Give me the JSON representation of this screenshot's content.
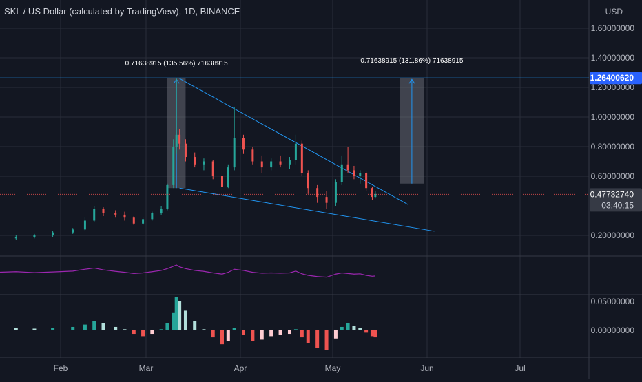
{
  "header": {
    "title": "SKL / US Dollar (calculated by TradingView), 1D, BINANCE",
    "currency": "USD"
  },
  "colors": {
    "background": "#131722",
    "grid": "#2a2e39",
    "up": "#26a69a",
    "down": "#ef5350",
    "line_blue": "#2196f3",
    "rsi": "#9c27b0",
    "hist_light_up": "#b2dfdb",
    "hist_light_down": "#ffcdd2",
    "label_bg": "#2962ff",
    "price_bg": "#363a45"
  },
  "price_scale": {
    "ticks": [
      "1.60000000",
      "1.40000000",
      "1.20000000",
      "1.00000000",
      "0.80000000",
      "0.60000000",
      "0.20000000"
    ],
    "tick_values": [
      1.6,
      1.4,
      1.2,
      1.0,
      0.8,
      0.6,
      0.2
    ],
    "level_label": "1.26400620",
    "current_price": "0.47732740",
    "countdown": "03:40:15"
  },
  "osc_scale": {
    "ticks": [
      "0.05000000",
      "0.00000000"
    ],
    "tick_values": [
      0.05,
      0.0
    ]
  },
  "time_axis": [
    "Feb",
    "Mar",
    "Apr",
    "May",
    "Jun",
    "Jul"
  ],
  "measure_labels": [
    "0.71638915 (135.56%) 71638915",
    "0.71638915 (131.86%) 71638915"
  ],
  "chart_data": {
    "type": "candlestick",
    "title": "SKL / US Dollar (calculated by TradingView), 1D, BINANCE",
    "ylim": [
      0.1,
      1.7
    ],
    "price_level": 1.264,
    "last_price": 0.4773,
    "wedge": {
      "upper": [
        [
          "Mar 12",
          1.26
        ],
        [
          "May 23",
          0.44
        ]
      ],
      "lower": [
        [
          "Mar 12",
          0.52
        ],
        [
          "May 31",
          0.24
        ]
      ]
    },
    "candles": [
      {
        "date": "Jan 1",
        "o": 0.16,
        "h": 0.18,
        "l": 0.15,
        "c": 0.17
      },
      {
        "date": "Jan 8",
        "o": 0.17,
        "h": 0.19,
        "l": 0.16,
        "c": 0.18
      },
      {
        "date": "Jan 15",
        "o": 0.18,
        "h": 0.2,
        "l": 0.17,
        "c": 0.19
      },
      {
        "date": "Jan 22",
        "o": 0.19,
        "h": 0.21,
        "l": 0.18,
        "c": 0.2
      },
      {
        "date": "Jan 29",
        "o": 0.2,
        "h": 0.23,
        "l": 0.19,
        "c": 0.22
      },
      {
        "date": "Feb 5",
        "o": 0.22,
        "h": 0.25,
        "l": 0.21,
        "c": 0.24
      },
      {
        "date": "Feb 9",
        "o": 0.24,
        "h": 0.32,
        "l": 0.23,
        "c": 0.3
      },
      {
        "date": "Feb 12",
        "o": 0.3,
        "h": 0.4,
        "l": 0.29,
        "c": 0.38
      },
      {
        "date": "Feb 15",
        "o": 0.38,
        "h": 0.39,
        "l": 0.33,
        "c": 0.35
      },
      {
        "date": "Feb 19",
        "o": 0.35,
        "h": 0.37,
        "l": 0.32,
        "c": 0.34
      },
      {
        "date": "Feb 22",
        "o": 0.34,
        "h": 0.36,
        "l": 0.3,
        "c": 0.32
      },
      {
        "date": "Feb 25",
        "o": 0.32,
        "h": 0.33,
        "l": 0.27,
        "c": 0.28
      },
      {
        "date": "Feb 28",
        "o": 0.28,
        "h": 0.32,
        "l": 0.27,
        "c": 0.31
      },
      {
        "date": "Mar 3",
        "o": 0.31,
        "h": 0.36,
        "l": 0.3,
        "c": 0.35
      },
      {
        "date": "Mar 6",
        "o": 0.35,
        "h": 0.4,
        "l": 0.34,
        "c": 0.38
      },
      {
        "date": "Mar 8",
        "o": 0.38,
        "h": 0.55,
        "l": 0.37,
        "c": 0.54
      },
      {
        "date": "Mar 10",
        "o": 0.54,
        "h": 0.85,
        "l": 0.52,
        "c": 0.8
      },
      {
        "date": "Mar 11",
        "o": 0.8,
        "h": 1.26,
        "l": 0.75,
        "c": 0.88
      },
      {
        "date": "Mar 12",
        "o": 0.88,
        "h": 0.92,
        "l": 0.78,
        "c": 0.82
      },
      {
        "date": "Mar 14",
        "o": 0.82,
        "h": 0.85,
        "l": 0.7,
        "c": 0.73
      },
      {
        "date": "Mar 17",
        "o": 0.73,
        "h": 0.76,
        "l": 0.66,
        "c": 0.68
      },
      {
        "date": "Mar 20",
        "o": 0.68,
        "h": 0.72,
        "l": 0.64,
        "c": 0.7
      },
      {
        "date": "Mar 23",
        "o": 0.7,
        "h": 0.71,
        "l": 0.58,
        "c": 0.6
      },
      {
        "date": "Mar 26",
        "o": 0.6,
        "h": 0.64,
        "l": 0.5,
        "c": 0.53
      },
      {
        "date": "Mar 28",
        "o": 0.53,
        "h": 0.68,
        "l": 0.52,
        "c": 0.66
      },
      {
        "date": "Mar 30",
        "o": 0.66,
        "h": 1.07,
        "l": 0.64,
        "c": 0.86
      },
      {
        "date": "Apr 2",
        "o": 0.86,
        "h": 0.88,
        "l": 0.75,
        "c": 0.78
      },
      {
        "date": "Apr 5",
        "o": 0.78,
        "h": 0.8,
        "l": 0.68,
        "c": 0.7
      },
      {
        "date": "Apr 8",
        "o": 0.7,
        "h": 0.74,
        "l": 0.62,
        "c": 0.66
      },
      {
        "date": "Apr 11",
        "o": 0.66,
        "h": 0.72,
        "l": 0.64,
        "c": 0.7
      },
      {
        "date": "Apr 14",
        "o": 0.7,
        "h": 0.74,
        "l": 0.66,
        "c": 0.68
      },
      {
        "date": "Apr 17",
        "o": 0.68,
        "h": 0.73,
        "l": 0.65,
        "c": 0.71
      },
      {
        "date": "Apr 19",
        "o": 0.71,
        "h": 0.88,
        "l": 0.68,
        "c": 0.82
      },
      {
        "date": "Apr 21",
        "o": 0.82,
        "h": 0.84,
        "l": 0.6,
        "c": 0.62
      },
      {
        "date": "Apr 23",
        "o": 0.62,
        "h": 0.64,
        "l": 0.48,
        "c": 0.52
      },
      {
        "date": "Apr 26",
        "o": 0.52,
        "h": 0.54,
        "l": 0.42,
        "c": 0.46
      },
      {
        "date": "Apr 29",
        "o": 0.46,
        "h": 0.5,
        "l": 0.38,
        "c": 0.42
      },
      {
        "date": "May 2",
        "o": 0.42,
        "h": 0.58,
        "l": 0.4,
        "c": 0.56
      },
      {
        "date": "May 4",
        "o": 0.56,
        "h": 0.74,
        "l": 0.54,
        "c": 0.68
      },
      {
        "date": "May 6",
        "o": 0.68,
        "h": 0.8,
        "l": 0.62,
        "c": 0.64
      },
      {
        "date": "May 8",
        "o": 0.64,
        "h": 0.67,
        "l": 0.58,
        "c": 0.6
      },
      {
        "date": "May 10",
        "o": 0.6,
        "h": 0.64,
        "l": 0.55,
        "c": 0.62
      },
      {
        "date": "May 12",
        "o": 0.62,
        "h": 0.63,
        "l": 0.5,
        "c": 0.52
      },
      {
        "date": "May 14",
        "o": 0.52,
        "h": 0.53,
        "l": 0.44,
        "c": 0.46
      },
      {
        "date": "May 15",
        "o": 0.46,
        "h": 0.5,
        "l": 0.45,
        "c": 0.48
      }
    ],
    "rsi": [
      58,
      60,
      62,
      59,
      61,
      64,
      70,
      74,
      68,
      63,
      60,
      56,
      58,
      62,
      66,
      72,
      80,
      84,
      78,
      72,
      66,
      63,
      58,
      54,
      60,
      70,
      66,
      60,
      57,
      58,
      57,
      58,
      64,
      55,
      50,
      46,
      44,
      54,
      58,
      56,
      54,
      55,
      50,
      47,
      48
    ],
    "macd_hist": [
      0.004,
      0.005,
      0.004,
      0.003,
      0.004,
      0.006,
      0.01,
      0.016,
      0.012,
      0.006,
      0.002,
      -0.006,
      -0.01,
      -0.006,
      0.002,
      0.012,
      0.03,
      0.058,
      0.05,
      0.034,
      0.016,
      0.002,
      -0.012,
      -0.024,
      -0.018,
      0.004,
      -0.008,
      -0.018,
      -0.016,
      -0.01,
      -0.008,
      -0.006,
      0.002,
      -0.012,
      -0.022,
      -0.03,
      -0.034,
      -0.014,
      0.006,
      0.012,
      0.008,
      0.004,
      -0.004,
      -0.01,
      -0.012
    ]
  }
}
